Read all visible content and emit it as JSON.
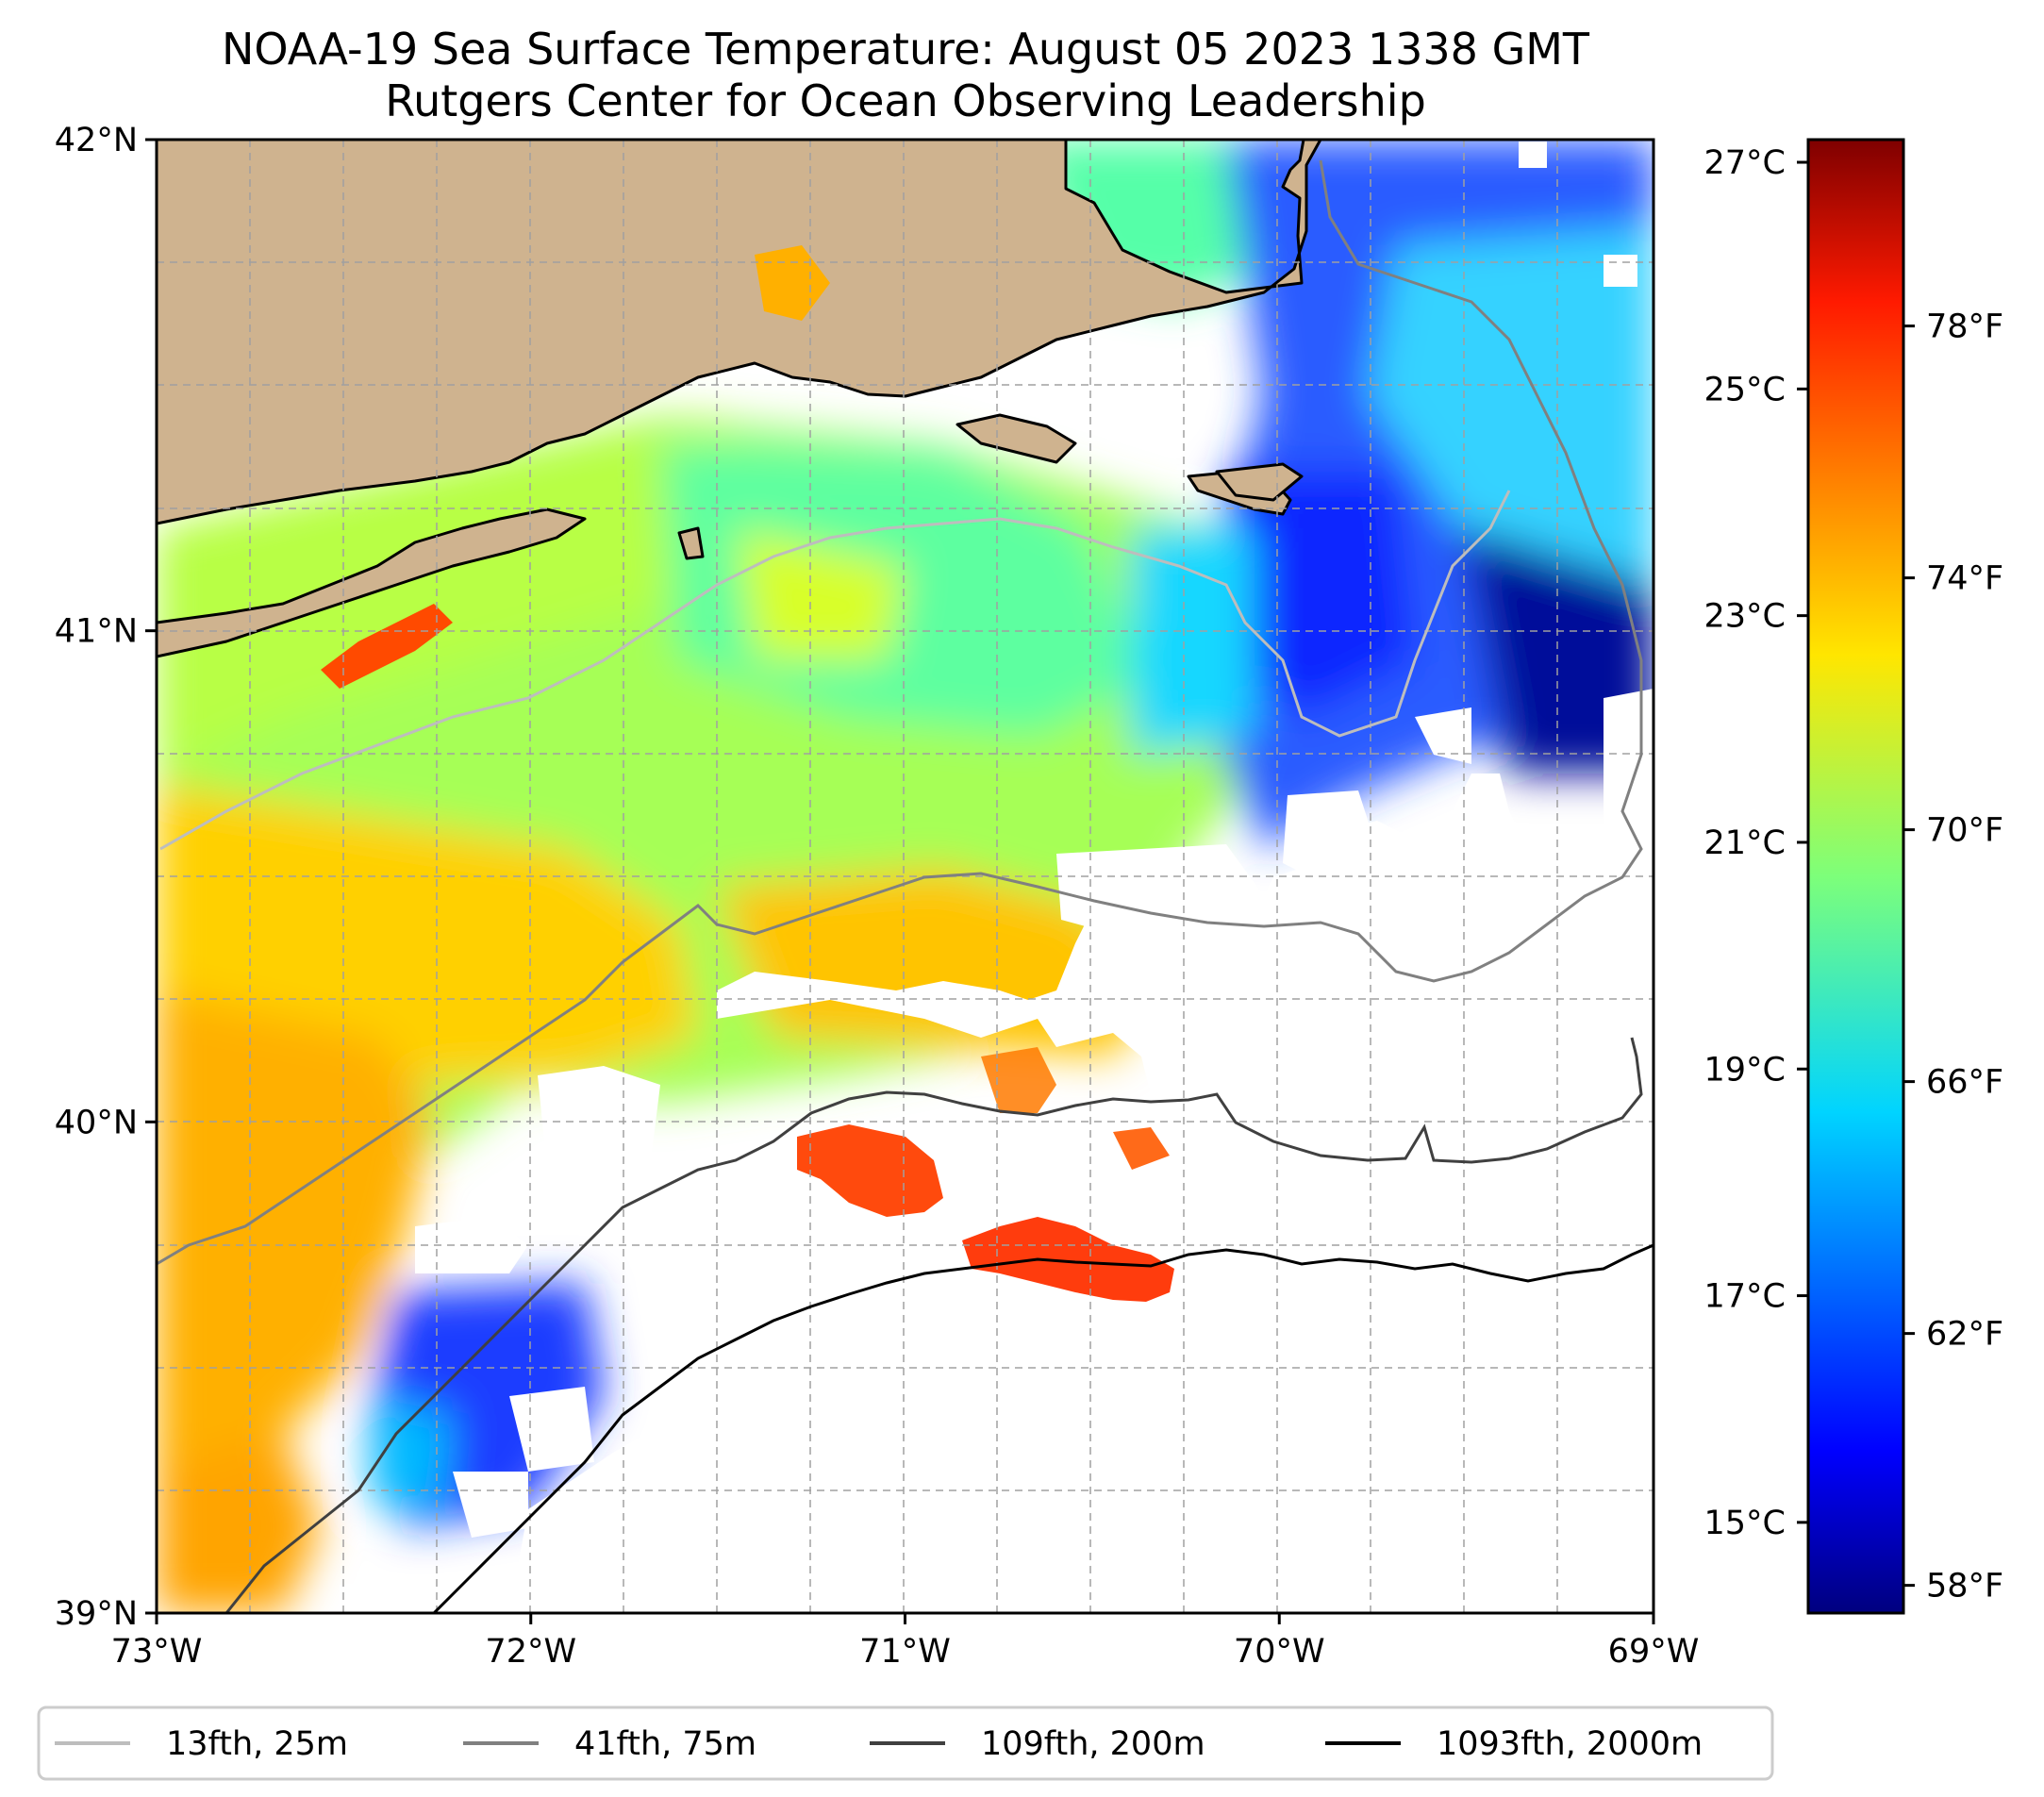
{
  "title": {
    "line1": "NOAA-19 Sea Surface Temperature: August 05 2023 1338 GMT",
    "line2": "Rutgers Center for Ocean Observing Leadership"
  },
  "map": {
    "lon_range": [
      -73,
      -69
    ],
    "lat_range": [
      39,
      42
    ],
    "lon_ticks": [
      {
        "value": -73,
        "label": "73°W"
      },
      {
        "value": -72,
        "label": "72°W"
      },
      {
        "value": -71,
        "label": "71°W"
      },
      {
        "value": -70,
        "label": "70°W"
      },
      {
        "value": -69,
        "label": "69°W"
      }
    ],
    "lat_ticks": [
      {
        "value": 42,
        "label": "42°N"
      },
      {
        "value": 41,
        "label": "41°N"
      },
      {
        "value": 40,
        "label": "40°N"
      },
      {
        "value": 39,
        "label": "39°N"
      }
    ],
    "land_color": "#cfb38f",
    "coast_color": "#000000"
  },
  "colorbar": {
    "colormap": "jet",
    "celsius_range": [
      14.2,
      27.2
    ],
    "celsius_ticks": [
      {
        "value": 27,
        "label": "27°C"
      },
      {
        "value": 25,
        "label": "25°C"
      },
      {
        "value": 23,
        "label": "23°C"
      },
      {
        "value": 21,
        "label": "21°C"
      },
      {
        "value": 19,
        "label": "19°C"
      },
      {
        "value": 17,
        "label": "17°C"
      },
      {
        "value": 15,
        "label": "15°C"
      }
    ],
    "fahrenheit_ticks": [
      {
        "value": 78,
        "label": "78°F"
      },
      {
        "value": 74,
        "label": "74°F"
      },
      {
        "value": 70,
        "label": "70°F"
      },
      {
        "value": 66,
        "label": "66°F"
      },
      {
        "value": 62,
        "label": "62°F"
      },
      {
        "value": 58,
        "label": "58°F"
      }
    ]
  },
  "legend": [
    {
      "label": "13fth, 25m",
      "color": "#bdbdbd"
    },
    {
      "label": "41fth, 75m",
      "color": "#808080"
    },
    {
      "label": "109fth, 200m",
      "color": "#404040"
    },
    {
      "label": "1093fth, 2000m",
      "color": "#000000"
    }
  ]
}
